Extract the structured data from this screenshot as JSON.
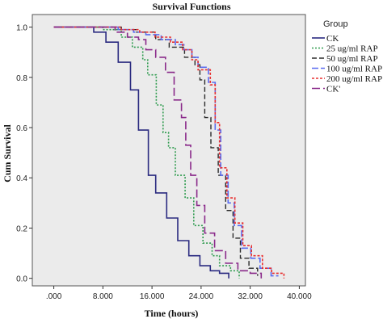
{
  "chart_data": {
    "type": "line",
    "title": "Survival Functions",
    "xlabel": "Time (hours)",
    "ylabel": "Cum Survival",
    "xlim": [
      -3500,
      41000
    ],
    "ylim": [
      -0.03,
      1.05
    ],
    "x_ticks": [
      0,
      8000,
      16000,
      24000,
      32000,
      40000
    ],
    "x_tick_labels": [
      ".000",
      "8.000",
      "16.000",
      "24.000",
      "32.000",
      "40.000"
    ],
    "y_ticks": [
      0.0,
      0.2,
      0.4,
      0.6,
      0.8,
      1.0
    ],
    "y_tick_labels": [
      "0.0",
      "0.2",
      "0.4",
      "0.6",
      "0.8",
      "1.0"
    ],
    "grid": false,
    "background": "#ebebeb",
    "legend": {
      "title": "Group",
      "position": "right"
    },
    "series": [
      {
        "name": "CK",
        "color": "#2a2a80",
        "dash": "",
        "width": 1.6,
        "points": [
          [
            0,
            1.0
          ],
          [
            6500,
            0.98
          ],
          [
            8500,
            0.94
          ],
          [
            10500,
            0.86
          ],
          [
            12500,
            0.75
          ],
          [
            13800,
            0.59
          ],
          [
            15400,
            0.41
          ],
          [
            16600,
            0.34
          ],
          [
            18400,
            0.24
          ],
          [
            20200,
            0.15
          ],
          [
            22000,
            0.09
          ],
          [
            23800,
            0.05
          ],
          [
            25500,
            0.03
          ],
          [
            27000,
            0.02
          ],
          [
            28500,
            0.0
          ]
        ]
      },
      {
        "name": "25 ug/ml RAP",
        "color": "#2e9b4e",
        "dash": "2,2",
        "width": 1.6,
        "points": [
          [
            0,
            1.0
          ],
          [
            8000,
            0.99
          ],
          [
            11000,
            0.96
          ],
          [
            12800,
            0.92
          ],
          [
            14500,
            0.87
          ],
          [
            15300,
            0.81
          ],
          [
            16700,
            0.69
          ],
          [
            17800,
            0.58
          ],
          [
            18700,
            0.52
          ],
          [
            19800,
            0.41
          ],
          [
            21400,
            0.32
          ],
          [
            22800,
            0.21
          ],
          [
            24300,
            0.14
          ],
          [
            25800,
            0.09
          ],
          [
            27000,
            0.05
          ],
          [
            28800,
            0.03
          ],
          [
            30200,
            0.0
          ]
        ]
      },
      {
        "name": "50 ug/ml RAP",
        "color": "#2b2b2b",
        "dash": "6,3",
        "width": 1.4,
        "points": [
          [
            0,
            1.0
          ],
          [
            11000,
            0.99
          ],
          [
            13500,
            0.98
          ],
          [
            16600,
            0.95
          ],
          [
            18800,
            0.92
          ],
          [
            21300,
            0.88
          ],
          [
            23000,
            0.85
          ],
          [
            23800,
            0.79
          ],
          [
            24600,
            0.64
          ],
          [
            25600,
            0.52
          ],
          [
            26800,
            0.41
          ],
          [
            28000,
            0.27
          ],
          [
            29200,
            0.16
          ],
          [
            30400,
            0.08
          ],
          [
            31800,
            0.04
          ],
          [
            33200,
            0.01
          ]
        ]
      },
      {
        "name": "100 ug/ml RAP",
        "color": "#5a6cf0",
        "dash": "8,3",
        "width": 1.6,
        "points": [
          [
            0,
            1.0
          ],
          [
            10500,
            0.99
          ],
          [
            13000,
            0.98
          ],
          [
            15000,
            0.97
          ],
          [
            17500,
            0.95
          ],
          [
            19800,
            0.93
          ],
          [
            21200,
            0.91
          ],
          [
            22500,
            0.88
          ],
          [
            23500,
            0.84
          ],
          [
            25200,
            0.78
          ],
          [
            26300,
            0.59
          ],
          [
            27200,
            0.41
          ],
          [
            28400,
            0.3
          ],
          [
            29400,
            0.21
          ],
          [
            30600,
            0.12
          ],
          [
            32100,
            0.08
          ],
          [
            33600,
            0.04
          ],
          [
            35400,
            0.01
          ],
          [
            36600,
            0.01
          ]
        ]
      },
      {
        "name": "200 ug/ml RAP",
        "color": "#e83030",
        "dash": "3,2",
        "width": 1.6,
        "points": [
          [
            0,
            1.0
          ],
          [
            11000,
            0.99
          ],
          [
            14000,
            0.98
          ],
          [
            16500,
            0.96
          ],
          [
            19000,
            0.94
          ],
          [
            21000,
            0.91
          ],
          [
            22500,
            0.87
          ],
          [
            23500,
            0.83
          ],
          [
            25500,
            0.77
          ],
          [
            26300,
            0.62
          ],
          [
            27000,
            0.44
          ],
          [
            28200,
            0.32
          ],
          [
            29500,
            0.22
          ],
          [
            30800,
            0.13
          ],
          [
            32200,
            0.09
          ],
          [
            34000,
            0.04
          ],
          [
            35500,
            0.02
          ],
          [
            37500,
            0.0
          ]
        ]
      },
      {
        "name": "CK'",
        "color": "#8a2a8a",
        "dash": "10,4",
        "width": 1.6,
        "points": [
          [
            0,
            1.0
          ],
          [
            10000,
            0.98
          ],
          [
            12000,
            0.96
          ],
          [
            13800,
            0.95
          ],
          [
            15000,
            0.91
          ],
          [
            16600,
            0.88
          ],
          [
            18200,
            0.82
          ],
          [
            19600,
            0.71
          ],
          [
            20800,
            0.64
          ],
          [
            21500,
            0.53
          ],
          [
            22300,
            0.41
          ],
          [
            23300,
            0.29
          ],
          [
            24600,
            0.18
          ],
          [
            26200,
            0.11
          ],
          [
            28000,
            0.06
          ],
          [
            30000,
            0.03
          ],
          [
            32000,
            0.02
          ],
          [
            33800,
            0.0
          ]
        ]
      }
    ]
  }
}
